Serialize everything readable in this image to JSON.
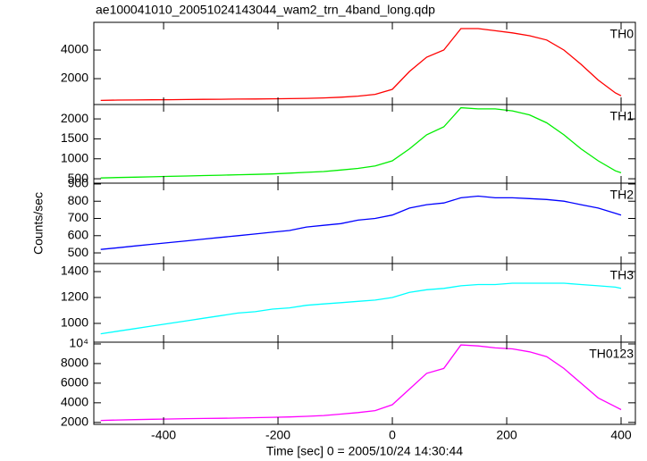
{
  "chart_data": {
    "type": "line",
    "title": "ae100041010_20051024143044_wam2_trn_4band_long.qdp",
    "xlabel": "Time [sec] 0 = 2005/10/24 14:30:44",
    "ylabel": "Counts/sec",
    "x": [
      -510,
      -480,
      -450,
      -420,
      -390,
      -360,
      -330,
      -300,
      -270,
      -240,
      -210,
      -180,
      -150,
      -120,
      -90,
      -60,
      -30,
      0,
      30,
      60,
      90,
      120,
      150,
      180,
      210,
      240,
      270,
      300,
      330,
      360,
      390,
      400
    ],
    "xlim": [
      -522,
      425
    ],
    "xticks": [
      -400,
      -200,
      0,
      200,
      400
    ],
    "series": [
      {
        "name": "TH0",
        "color": "#ff0000",
        "ylim": [
          190,
          5940
        ],
        "yticks": [
          2000,
          4000
        ],
        "values": [
          480,
          500,
          510,
          520,
          530,
          540,
          550,
          560,
          570,
          580,
          590,
          600,
          620,
          650,
          700,
          780,
          900,
          1250,
          2500,
          3500,
          4000,
          5500,
          5500,
          5350,
          5200,
          5000,
          4700,
          4000,
          3000,
          1900,
          1000,
          800
        ]
      },
      {
        "name": "TH1",
        "color": "#00ee00",
        "ylim": [
          390,
          2360
        ],
        "yticks": [
          500,
          1000,
          1500,
          2000
        ],
        "values": [
          520,
          530,
          540,
          550,
          560,
          570,
          580,
          590,
          600,
          610,
          620,
          640,
          660,
          680,
          720,
          760,
          820,
          950,
          1250,
          1600,
          1800,
          2280,
          2250,
          2250,
          2200,
          2100,
          1900,
          1600,
          1250,
          950,
          700,
          650
        ]
      },
      {
        "name": "TH2",
        "color": "#0000ff",
        "ylim": [
          438,
          905
        ],
        "yticks": [
          500,
          600,
          700,
          800,
          900
        ],
        "values": [
          520,
          530,
          540,
          550,
          560,
          570,
          580,
          590,
          600,
          610,
          620,
          630,
          650,
          660,
          670,
          690,
          700,
          720,
          760,
          780,
          790,
          820,
          830,
          820,
          820,
          815,
          810,
          800,
          780,
          760,
          730,
          720
        ]
      },
      {
        "name": "TH3",
        "color": "#00ffff",
        "ylim": [
          855,
          1462
        ],
        "yticks": [
          1000,
          1200,
          1400
        ],
        "values": [
          920,
          940,
          960,
          980,
          1000,
          1020,
          1040,
          1060,
          1080,
          1090,
          1110,
          1120,
          1140,
          1150,
          1160,
          1170,
          1180,
          1200,
          1240,
          1260,
          1270,
          1290,
          1300,
          1300,
          1310,
          1310,
          1310,
          1310,
          1300,
          1290,
          1280,
          1270
        ]
      },
      {
        "name": "TH0123",
        "color": "#ff00ff",
        "ylim": [
          1800,
          10180
        ],
        "yticks": [
          2000,
          4000,
          6000,
          8000,
          {
            "value": 10000,
            "label": "10⁴"
          }
        ],
        "values": [
          2200,
          2250,
          2280,
          2320,
          2350,
          2380,
          2400,
          2420,
          2450,
          2480,
          2520,
          2560,
          2620,
          2700,
          2850,
          3000,
          3200,
          3800,
          5400,
          7000,
          7500,
          9900,
          9800,
          9600,
          9500,
          9200,
          8700,
          7500,
          6000,
          4500,
          3600,
          3300
        ]
      }
    ]
  }
}
